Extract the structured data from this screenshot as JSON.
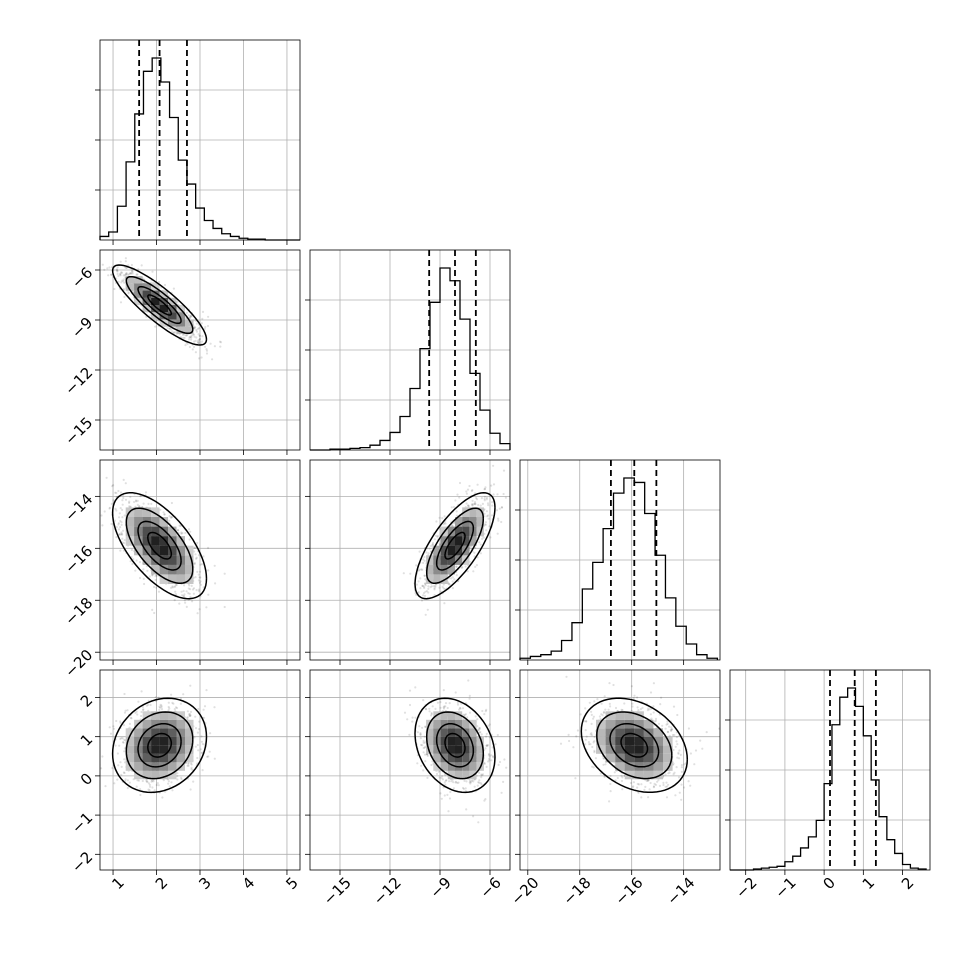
{
  "chart_data": {
    "type": "corner",
    "title": "",
    "grid": true,
    "parameters": [
      {
        "range": [
          0.7,
          5.3
        ],
        "ticks": [
          1,
          2,
          3,
          4,
          5
        ],
        "tick_labels": [
          "1",
          "2",
          "3",
          "4",
          "5"
        ],
        "quantiles": [
          1.6,
          2.07,
          2.7
        ],
        "hist": {
          "edges": [
            0.7,
            0.9,
            1.1,
            1.3,
            1.5,
            1.7,
            1.9,
            2.1,
            2.3,
            2.5,
            2.7,
            2.9,
            3.1,
            3.3,
            3.5,
            3.7,
            3.9,
            4.1,
            4.3,
            4.5,
            4.7,
            4.9,
            5.1,
            5.3
          ],
          "counts": [
            4,
            9,
            38,
            88,
            142,
            190,
            205,
            178,
            138,
            90,
            63,
            36,
            22,
            13,
            7,
            4,
            2,
            1,
            1,
            0,
            0,
            0,
            0
          ]
        }
      },
      {
        "range": [
          -16.8,
          -4.8
        ],
        "ticks": [
          -15,
          -12,
          -9,
          -6
        ],
        "tick_labels": [
          "−15",
          "−12",
          "−9",
          "−6"
        ],
        "quantiles": [
          -9.65,
          -8.1,
          -6.85
        ],
        "hist": {
          "edges": [
            -16.8,
            -16.2,
            -15.6,
            -15.0,
            -14.4,
            -13.8,
            -13.2,
            -12.6,
            -12.0,
            -11.4,
            -10.8,
            -10.2,
            -9.6,
            -9.0,
            -8.4,
            -7.8,
            -7.2,
            -6.6,
            -6.0,
            -5.4,
            -4.8
          ],
          "counts": [
            0,
            0,
            1,
            1,
            2,
            3,
            6,
            12,
            22,
            42,
            77,
            127,
            185,
            228,
            212,
            164,
            96,
            50,
            21,
            8
          ]
        }
      },
      {
        "range": [
          -20.3,
          -12.6
        ],
        "ticks": [
          -20,
          -18,
          -16,
          -14
        ],
        "tick_labels": [
          "−20",
          "−18",
          "−16",
          "−14"
        ],
        "quantiles": [
          -16.8,
          -15.9,
          -15.05
        ],
        "hist": {
          "edges": [
            -20.3,
            -19.9,
            -19.5,
            -19.1,
            -18.7,
            -18.3,
            -17.9,
            -17.5,
            -17.1,
            -16.7,
            -16.3,
            -15.9,
            -15.5,
            -15.1,
            -14.7,
            -14.3,
            -13.9,
            -13.5,
            -13.1,
            -12.7
          ],
          "counts": [
            2,
            4,
            6,
            10,
            22,
            42,
            80,
            110,
            148,
            188,
            205,
            200,
            165,
            118,
            70,
            38,
            18,
            6,
            2
          ]
        }
      },
      {
        "range": [
          -2.4,
          2.7
        ],
        "ticks": [
          -2,
          -1,
          0,
          1,
          2
        ],
        "tick_labels": [
          "−2",
          "−1",
          "0",
          "1",
          "2"
        ],
        "quantiles": [
          0.15,
          0.78,
          1.32
        ],
        "hist": {
          "edges": [
            -2.4,
            -2.2,
            -2.0,
            -1.8,
            -1.6,
            -1.4,
            -1.2,
            -1.0,
            -0.8,
            -0.6,
            -0.4,
            -0.2,
            0.0,
            0.2,
            0.4,
            0.6,
            0.8,
            1.0,
            1.2,
            1.4,
            1.6,
            1.8,
            2.0,
            2.2,
            2.4,
            2.6
          ],
          "counts": [
            0,
            0,
            0,
            1,
            2,
            3,
            4,
            9,
            15,
            24,
            36,
            54,
            94,
            158,
            188,
            198,
            178,
            146,
            98,
            58,
            33,
            18,
            6,
            2,
            1
          ]
        }
      }
    ],
    "pairs": [
      {
        "x": 0,
        "y": 1,
        "mean": [
          2.07,
          -8.1
        ],
        "sd": [
          0.45,
          1.0
        ],
        "rho": -0.86
      },
      {
        "x": 0,
        "y": 2,
        "mean": [
          2.07,
          -15.9
        ],
        "sd": [
          0.45,
          0.85
        ],
        "rho": -0.62
      },
      {
        "x": 1,
        "y": 2,
        "mean": [
          -8.1,
          -15.9
        ],
        "sd": [
          1.0,
          0.85
        ],
        "rho": 0.72
      },
      {
        "x": 0,
        "y": 3,
        "mean": [
          2.07,
          0.78
        ],
        "sd": [
          0.45,
          0.5
        ],
        "rho": 0.18
      },
      {
        "x": 1,
        "y": 3,
        "mean": [
          -8.1,
          0.78
        ],
        "sd": [
          1.0,
          0.5
        ],
        "rho": -0.25
      },
      {
        "x": 2,
        "y": 3,
        "mean": [
          -15.9,
          0.78
        ],
        "sd": [
          0.85,
          0.5
        ],
        "rho": -0.3
      }
    ]
  }
}
